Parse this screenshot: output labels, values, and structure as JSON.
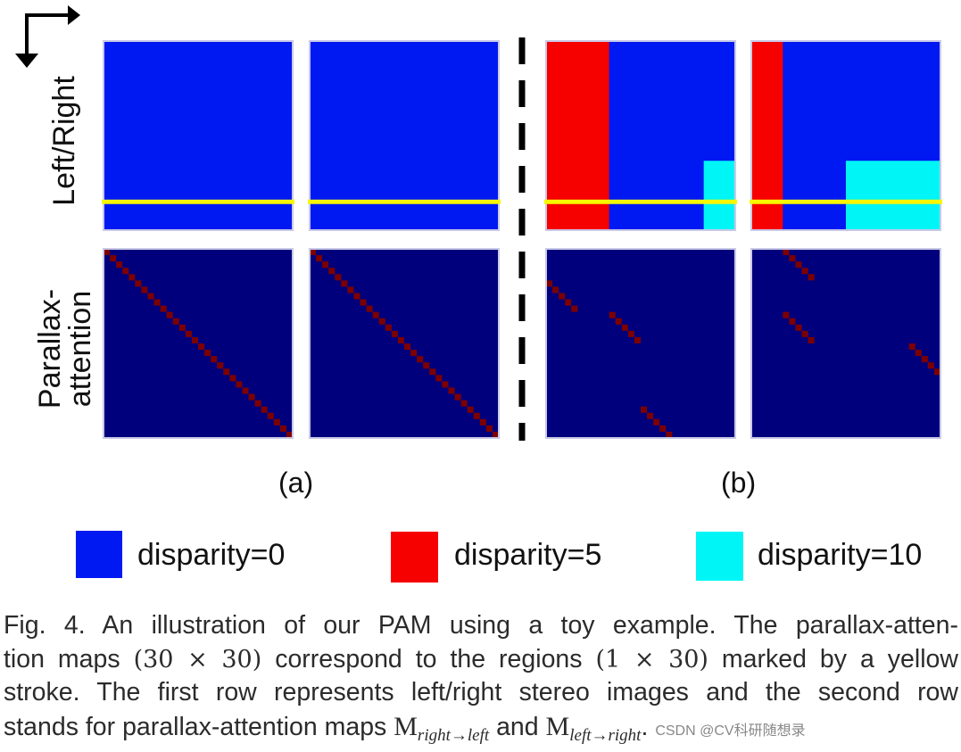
{
  "figure": {
    "columns": {
      "a": "(a)",
      "b": "(b)"
    },
    "row_labels": {
      "top": "Left/Right",
      "bottom_line1": "Parallax-",
      "bottom_line2": "attention"
    },
    "legend": [
      {
        "label": "disparity=0",
        "color": "#0019f2"
      },
      {
        "label": "disparity=5",
        "color": "#f60000"
      },
      {
        "label": "disparity=10",
        "color": "#00f6f6"
      }
    ],
    "colors": {
      "disparity0": "#0019f2",
      "disparity5": "#f60000",
      "disparity10": "#00f6f6",
      "attention_bg": "#00007c",
      "attention_peak": "#7c0000",
      "stroke": "#f7f700",
      "separator": "#000000"
    },
    "grid_size": 30,
    "stroke_row": 25,
    "images": {
      "a_left": {
        "red": [
          0,
          0
        ],
        "cyan_cols": [
          0,
          0
        ],
        "cyan_from_row": 0
      },
      "a_right": {
        "red": [
          0,
          0
        ],
        "cyan_cols": [
          0,
          0
        ],
        "cyan_from_row": 0
      },
      "b_left": {
        "red_cols": [
          0,
          9
        ],
        "cyan_cols": [
          25,
          29
        ],
        "cyan_from_row": 19
      },
      "b_right": {
        "red_cols": [
          0,
          4
        ],
        "cyan_cols": [
          15,
          29
        ],
        "cyan_from_row": 19
      }
    },
    "attention": {
      "a1": {
        "segments": [
          {
            "from": [
              0,
              0
            ],
            "len": 30
          }
        ]
      },
      "a2": {
        "segments": [
          {
            "from": [
              0,
              0
            ],
            "len": 30
          }
        ]
      },
      "b1": {
        "segments": [
          {
            "from": [
              5,
              0
            ],
            "len": 5
          },
          {
            "from": [
              10,
              10
            ],
            "len": 5
          },
          {
            "from": [
              25,
              15
            ],
            "len": 5
          }
        ]
      },
      "b2": {
        "segments": [
          {
            "from": [
              0,
              5
            ],
            "len": 5
          },
          {
            "from": [
              10,
              5
            ],
            "len": 5
          },
          {
            "from": [
              15,
              25
            ],
            "len": 5
          }
        ]
      }
    }
  },
  "caption": {
    "line1": "Fig. 4. An illustration of our PAM using a toy example. The parallax-atten-",
    "line2_a": "tion maps ",
    "line2_m1": "(30 × 30)",
    "line2_b": " correspond to the regions ",
    "line2_m2": "(1 × 30)",
    "line2_c": " marked by a yellow",
    "line3": "stroke. The first row represents left/right stereo images and the second row",
    "line4_a": "stands for parallax-attention maps ",
    "m_symbol": "M",
    "m1_sub": "right→left",
    "line4_b": " and ",
    "m2_sub": "left→right",
    "line4_c": ".",
    "watermark": "CSDN @CV科研随想录"
  }
}
